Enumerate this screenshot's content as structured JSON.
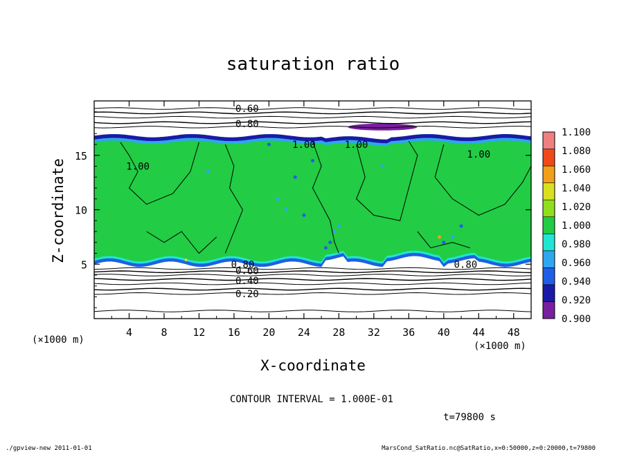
{
  "chart_data": {
    "type": "heatmap",
    "title": "saturation ratio",
    "xlabel": "X-coordinate",
    "ylabel": "Z-coordinate",
    "x_unit": "(×1000 m)",
    "y_unit": "(×1000 m)",
    "xlim": [
      0,
      50
    ],
    "ylim": [
      0,
      20
    ],
    "x_ticks": [
      "4",
      "8",
      "12",
      "16",
      "20",
      "24",
      "28",
      "32",
      "36",
      "40",
      "44",
      "48"
    ],
    "y_ticks": [
      "5",
      "10",
      "15"
    ],
    "colorbar": {
      "levels": [
        "0.900",
        "0.920",
        "0.940",
        "0.960",
        "0.980",
        "1.000",
        "1.020",
        "1.040",
        "1.060",
        "1.080",
        "1.100"
      ],
      "colors": [
        "#7a1fa0",
        "#1a1aa8",
        "#1f5fe6",
        "#2fa6f0",
        "#1fe6d2",
        "#22cc44",
        "#8fdf1f",
        "#d8e020",
        "#f2a01a",
        "#f04a1a",
        "#f08080"
      ]
    },
    "contour_labels": [
      "0.60",
      "0.80",
      "1.00",
      "1.00",
      "1.00",
      "1.00",
      "0.80",
      "0.60",
      "0.40",
      "0.20",
      "0.80"
    ],
    "contour_interval": "CONTOUR INTERVAL = 1.000E-01",
    "time_label": "t=79800 s",
    "footer_left": "./gpview-new 2011-01-01",
    "footer_right": "MarsCond_SatRatio.nc@SatRatio,x=0:50000,z=0:20000,t=79800"
  }
}
